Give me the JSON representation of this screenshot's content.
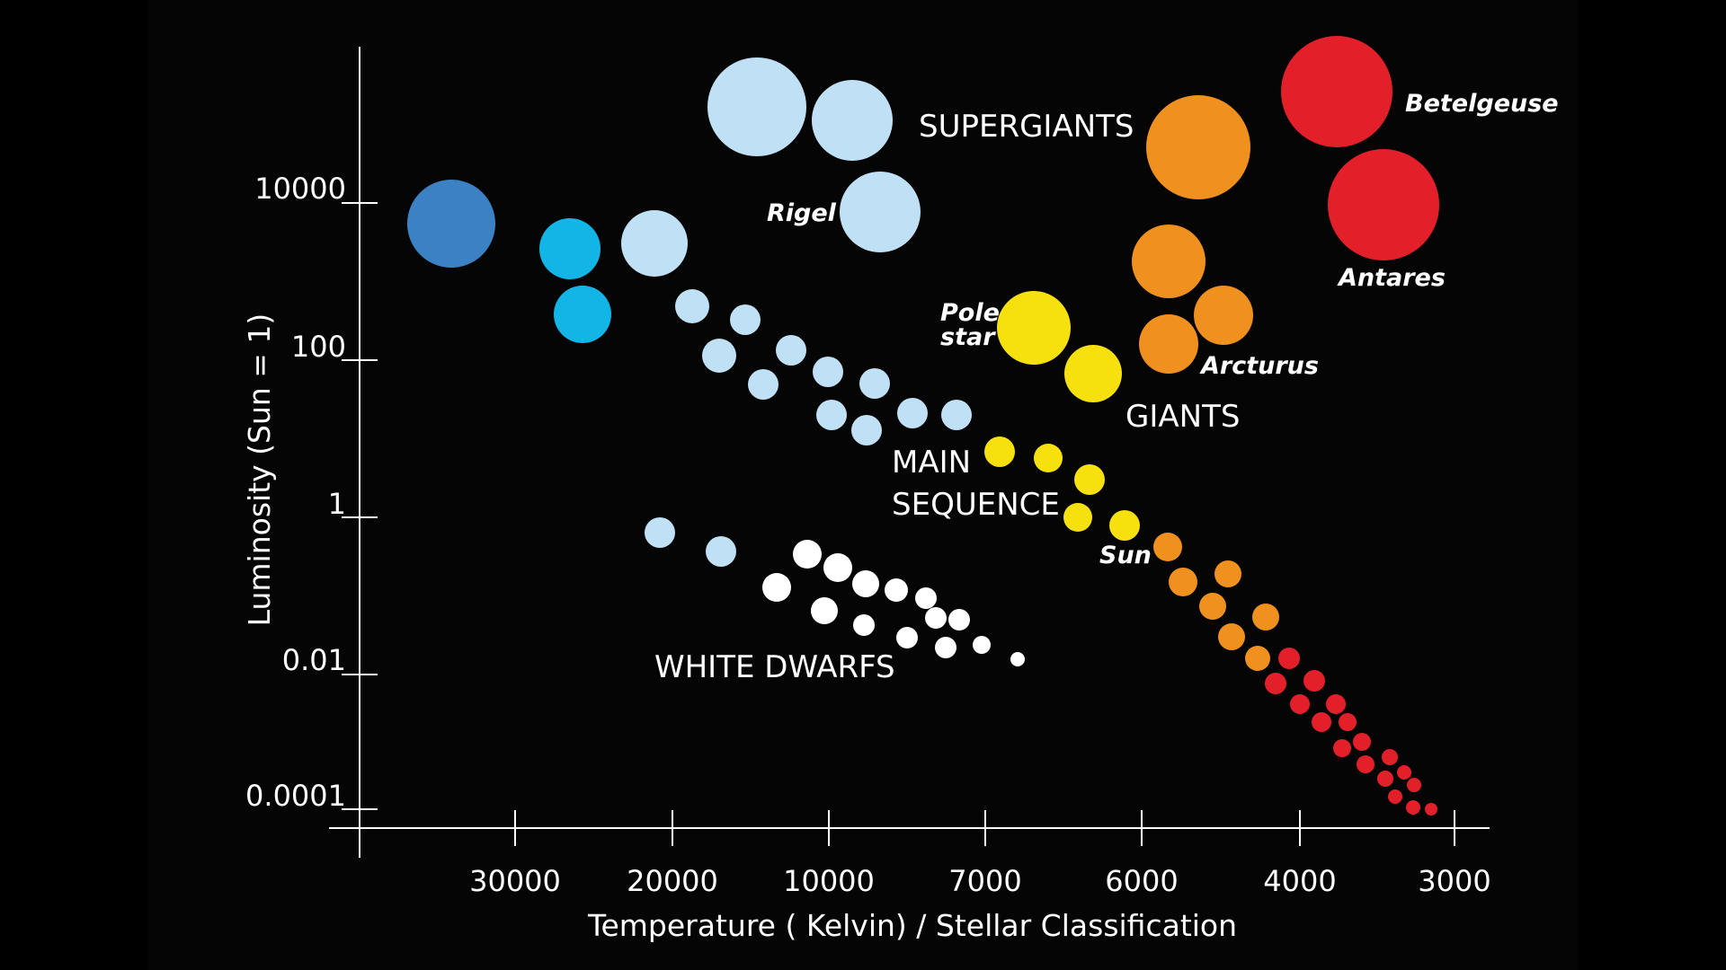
{
  "chart_data": {
    "type": "scatter",
    "title": "",
    "xlabel": "Temperature ( Kelvin) / Stellar Classification",
    "ylabel": "Luminosity (Sun = 1)",
    "x_ticks": [
      "30000",
      "20000",
      "10000",
      "7000",
      "6000",
      "4000",
      "3000"
    ],
    "y_ticks": [
      "10000",
      "100",
      "1",
      "0.01",
      "0.0001"
    ],
    "y_scale": "log",
    "x_axis": "temperature decreasing left to right, non-linear",
    "grid": false,
    "regions": [
      {
        "label": "SUPERGIANTS"
      },
      {
        "label": "GIANTS"
      },
      {
        "label": "MAIN"
      },
      {
        "label": "SEQUENCE"
      },
      {
        "label": "WHITE DWARFS"
      }
    ],
    "named_stars": [
      {
        "name": "Betelgeuse",
        "temperature_k": 3500,
        "luminosity": 100000
      },
      {
        "name": "Antares",
        "temperature_k": 3400,
        "luminosity": 12000
      },
      {
        "name": "Rigel",
        "temperature_k": 8800,
        "luminosity": 8000
      },
      {
        "name": "Pole",
        "name2": "star",
        "temperature_k": 6800,
        "luminosity": 200
      },
      {
        "name": "Arcturus",
        "temperature_k": 5200,
        "luminosity": 80
      },
      {
        "name": "Sun",
        "temperature_k": 6000,
        "luminosity": 1
      }
    ],
    "colors": {
      "blue": "#3b82c4",
      "cyan": "#12b6e6",
      "light_blue": "#bfe0f5",
      "white": "#ffffff",
      "yellow": "#f6e10f",
      "orange": "#f0901f",
      "red": "#e3202a",
      "axis": "#ffffff",
      "background": "#050505"
    }
  }
}
